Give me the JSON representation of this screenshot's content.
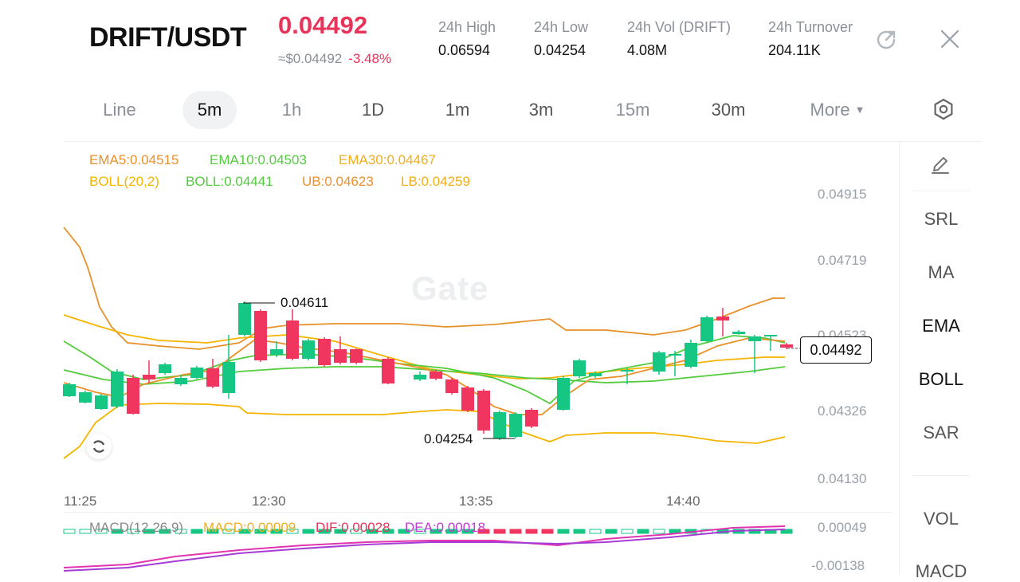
{
  "header": {
    "pair": "DRIFT/USDT",
    "last_price": "0.04492",
    "usd_price": "≈$0.04492",
    "change": "-3.48%",
    "stats": [
      {
        "label": "24h   High",
        "value": "0.06594"
      },
      {
        "label": "24h   Low",
        "value": "0.04254"
      },
      {
        "label": "24h   Vol (DRIFT)",
        "value": "4.08M"
      },
      {
        "label": "24h   Turnover",
        "value": "204.11K"
      }
    ]
  },
  "timeframes": [
    "Line",
    "5m",
    "1h",
    "1D",
    "1m",
    "3m",
    "15m",
    "30m",
    "More"
  ],
  "active_timeframe": "5m",
  "legend": {
    "ema5": "EMA5:0.04515",
    "ema10": "EMA10:0.04503",
    "ema30": "EMA30:0.04467",
    "boll": "BOLL(20,2)",
    "boll_mid": "BOLL:0.04441",
    "ub": "UB:0.04623",
    "lb": "LB:0.04259"
  },
  "price_axis": [
    "0.04915",
    "0.04719",
    "0.04523",
    "0.04326",
    "0.04130"
  ],
  "time_axis": [
    "11:25",
    "12:30",
    "13:35",
    "14:40"
  ],
  "current_price_tag": "0.04492",
  "high_marker": "0.04611",
  "low_marker": "0.04254",
  "watermark": "Gate",
  "macd": {
    "label": "MACD(12,26,9)",
    "macd": "MACD:0.00009",
    "dif": "DIF:0.00028",
    "dea": "DEA:0.00018",
    "axis": [
      "0.00049",
      "-0.00138"
    ]
  },
  "sidebar": [
    "SRL",
    "MA",
    "EMA",
    "BOLL",
    "SAR",
    "VOL",
    "MACD"
  ],
  "colors": {
    "up": "#16c784",
    "down": "#f0355f",
    "price_red": "#e8345a",
    "ema5": "#e8912a",
    "ema10": "#52cc3c",
    "ema30": "#f2ae1c",
    "boll": "#f5b400"
  },
  "chart_data": {
    "type": "candlestick",
    "x": [
      "11:25",
      "12:30",
      "13:35",
      "14:40"
    ],
    "indicators": [
      "EMA5",
      "EMA10",
      "EMA30",
      "BOLL(20,2)"
    ],
    "ylim": [
      0.0413,
      0.04915
    ],
    "annotations": {
      "high": 0.04611,
      "low": 0.04254,
      "last": 0.04492
    }
  }
}
